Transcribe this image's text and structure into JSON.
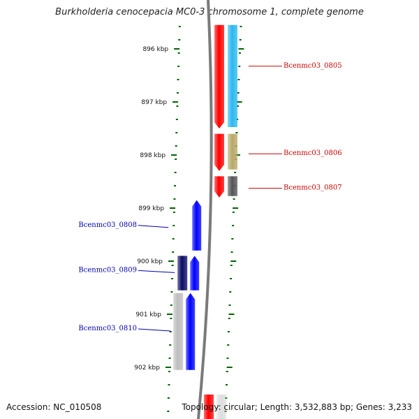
{
  "title": "Burkholderia cenocepacia MC0-3 chromosome 1, complete genome",
  "accession": "Accession: NC_010508",
  "topology": "Topology: circular; Length: 3,532,883 bp; Genes: 3,233",
  "colors": {
    "forward_label": "#cc0000",
    "reverse_label": "#0000aa",
    "tick": "#006400",
    "backbone": "#7a7a7a",
    "red": "#ff0000",
    "cyan": "#2ab8f0",
    "tan": "#b8a868",
    "darkgray": "#555555",
    "blue": "#0000ff",
    "navy": "#0a0a66",
    "lightgray": "#bdbdbd"
  },
  "ticks": [
    {
      "kbp": 896,
      "label": "896 kbp"
    },
    {
      "kbp": 897,
      "label": "897 kbp"
    },
    {
      "kbp": 898,
      "label": "898 kbp"
    },
    {
      "kbp": 899,
      "label": "899 kbp"
    },
    {
      "kbp": 900,
      "label": "900 kbp"
    },
    {
      "kbp": 901,
      "label": "901 kbp"
    },
    {
      "kbp": 902,
      "label": "902 kbp"
    }
  ],
  "genes": [
    {
      "name": "Bcenmc03_0805",
      "strand": "forward",
      "start_kbp": 895.55,
      "end_kbp": 897.5,
      "color": "red",
      "partner_color": "cyan"
    },
    {
      "name": "Bcenmc03_0806",
      "strand": "forward",
      "start_kbp": 897.6,
      "end_kbp": 898.3,
      "color": "red",
      "partner_color": "tan"
    },
    {
      "name": "Bcenmc03_0807",
      "strand": "forward",
      "start_kbp": 898.4,
      "end_kbp": 898.8,
      "color": "red",
      "partner_color": "darkgray"
    },
    {
      "name": "Bcenmc03_0808",
      "strand": "reverse",
      "start_kbp": 898.85,
      "end_kbp": 899.8,
      "color": "blue",
      "partner_color": null
    },
    {
      "name": "Bcenmc03_0809",
      "strand": "reverse",
      "start_kbp": 899.9,
      "end_kbp": 900.55,
      "color": "blue",
      "partner_color": "navy"
    },
    {
      "name": "Bcenmc03_0810",
      "strand": "reverse",
      "start_kbp": 900.6,
      "end_kbp": 902.05,
      "color": "blue",
      "partner_color": "lightgray"
    }
  ]
}
